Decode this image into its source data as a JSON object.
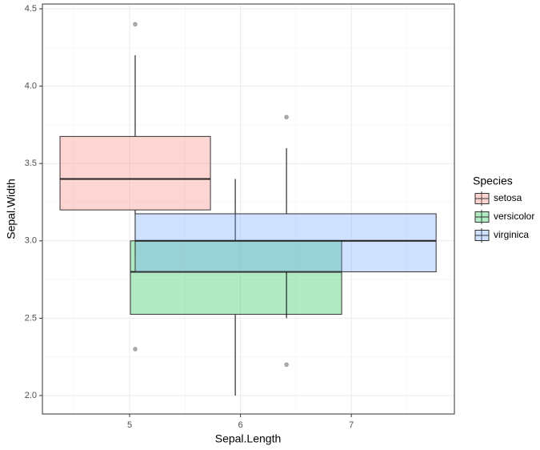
{
  "chart_data": {
    "type": "boxplot",
    "x_label": "Sepal.Length",
    "y_label": "Sepal.Width",
    "legend_title": "Species",
    "legend_position": "right",
    "xlim": [
      4.213,
      7.93
    ],
    "ylim": [
      1.881,
      4.531
    ],
    "xticks": [
      5,
      6,
      7
    ],
    "yticks": [
      {
        "value": 2.0,
        "label": "2.0"
      },
      {
        "value": 2.5,
        "label": "2.5"
      },
      {
        "value": 3.0,
        "label": "3.0"
      },
      {
        "value": 3.5,
        "label": "3.5"
      },
      {
        "value": 4.0,
        "label": "4.0"
      },
      {
        "value": 4.5,
        "label": "4.5"
      }
    ],
    "x_minor_ticks": [
      4.5,
      5.5,
      6.5,
      7.5
    ],
    "y_minor_ticks": [
      2.25,
      2.75,
      3.25,
      3.75,
      4.25
    ],
    "grid": true,
    "fill_opacity": 0.3,
    "series": [
      {
        "name": "setosa",
        "color": "#F8766D",
        "xmin": 4.372,
        "xmax": 5.729,
        "x": 5.05,
        "lower": 3.2,
        "median": 3.4,
        "upper": 3.675,
        "ymin": 2.9,
        "ymax": 4.2,
        "outliers": [
          4.4,
          2.3
        ]
      },
      {
        "name": "versicolor",
        "color": "#00BA38",
        "xmin": 5.007,
        "xmax": 6.913,
        "x": 5.953,
        "lower": 2.525,
        "median": 2.8,
        "upper": 3.0,
        "ymin": 2.0,
        "ymax": 3.4,
        "outliers": []
      },
      {
        "name": "virginica",
        "color": "#619CFF",
        "xmin": 5.05,
        "xmax": 7.765,
        "x": 6.415,
        "lower": 2.8,
        "median": 3.0,
        "upper": 3.175,
        "ymin": 2.5,
        "ymax": 3.6,
        "outliers": [
          3.8,
          2.2
        ]
      }
    ]
  }
}
